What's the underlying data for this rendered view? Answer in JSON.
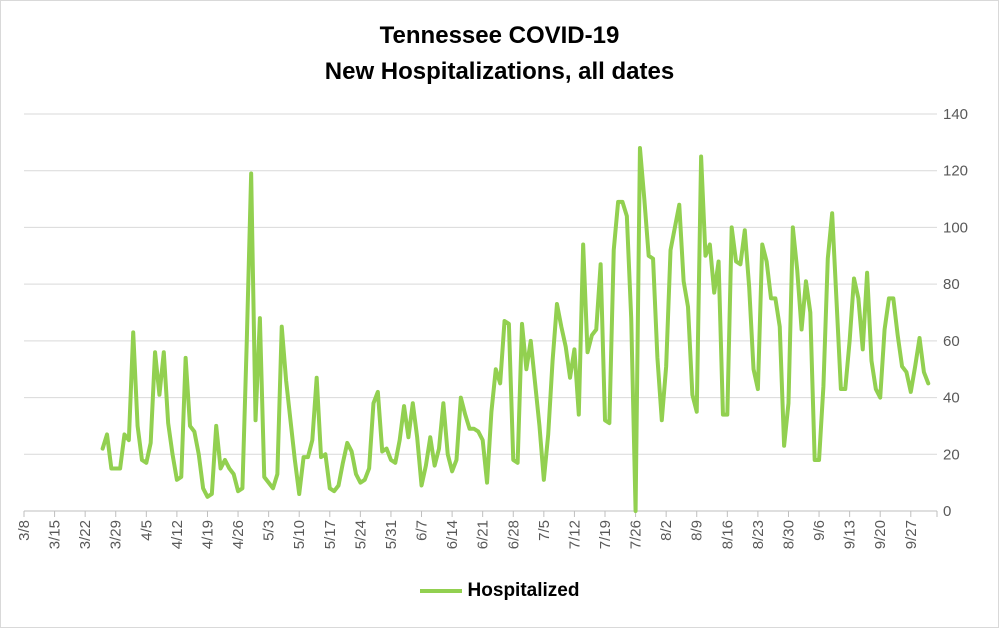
{
  "colors": {
    "series": "#92d050",
    "grid": "#d9d9d9",
    "axis": "#bfbfbf",
    "tick_text": "#595959",
    "title": "#000000"
  },
  "chart_data": {
    "type": "line",
    "title_line1": "Tennessee COVID-19",
    "title_line2": "New Hospitalizations, all dates",
    "xlabel": "",
    "ylabel": "",
    "ylim": [
      0,
      140
    ],
    "yticks": [
      0,
      20,
      40,
      60,
      80,
      100,
      120,
      140
    ],
    "y_axis_side": "right",
    "grid": true,
    "legend": "bottom",
    "x_start": "3/8",
    "x_end": "10/3",
    "x_tick_labels": [
      "3/8",
      "3/15",
      "3/22",
      "3/29",
      "4/5",
      "4/12",
      "4/19",
      "4/26",
      "5/3",
      "5/10",
      "5/17",
      "5/24",
      "5/31",
      "6/7",
      "6/14",
      "6/21",
      "6/28",
      "7/5",
      "7/12",
      "7/19",
      "7/26",
      "8/2",
      "8/9",
      "8/16",
      "8/23",
      "8/30",
      "9/6",
      "9/13",
      "9/20",
      "9/27"
    ],
    "series": [
      {
        "name": "Hospitalized",
        "start_date": "3/26",
        "values": [
          22,
          27,
          15,
          15,
          15,
          27,
          25,
          63,
          30,
          18,
          17,
          24,
          56,
          41,
          56,
          31,
          20,
          11,
          12,
          54,
          30,
          28,
          20,
          8,
          5,
          6,
          30,
          15,
          18,
          15,
          13,
          7,
          8,
          60,
          119,
          32,
          68,
          12,
          10,
          8,
          13,
          65,
          46,
          32,
          18,
          6,
          19,
          19,
          25,
          47,
          19,
          20,
          8,
          7,
          9,
          17,
          24,
          21,
          13,
          10,
          11,
          15,
          38,
          42,
          21,
          22,
          18,
          17,
          25,
          37,
          26,
          38,
          26,
          9,
          16,
          26,
          16,
          22,
          38,
          20,
          14,
          18,
          40,
          34,
          29,
          29,
          28,
          25,
          10,
          35,
          50,
          45,
          67,
          66,
          18,
          17,
          66,
          50,
          60,
          45,
          30,
          11,
          27,
          53,
          73,
          65,
          58,
          47,
          57,
          34,
          94,
          56,
          62,
          64,
          87,
          32,
          31,
          92,
          109,
          109,
          104,
          68,
          0,
          128,
          110,
          90,
          89,
          54,
          32,
          51,
          92,
          100,
          108,
          81,
          72,
          41,
          35,
          125,
          90,
          94,
          77,
          88,
          34,
          34,
          100,
          88,
          87,
          99,
          79,
          50,
          43,
          94,
          88,
          75,
          75,
          65,
          23,
          38,
          100,
          85,
          64,
          81,
          70,
          18,
          18,
          44,
          89,
          105,
          74,
          43,
          43,
          60,
          82,
          75,
          57,
          84,
          53,
          43,
          40,
          64,
          75,
          75,
          62,
          51,
          49,
          42,
          51,
          61,
          49,
          45
        ]
      }
    ]
  }
}
